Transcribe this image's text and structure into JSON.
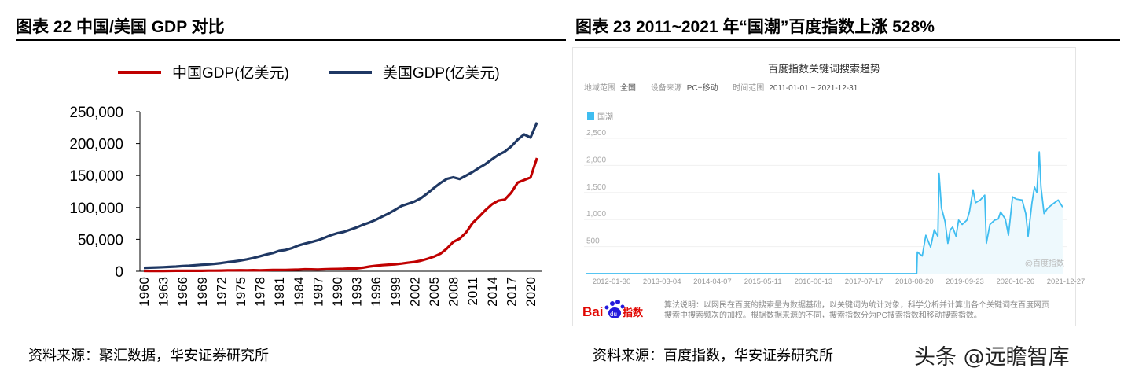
{
  "left": {
    "title": "图表 22  中国/美国 GDP 对比",
    "source": "资料来源：聚汇数据，华安证券研究所"
  },
  "right": {
    "title": "图表 23 2011~2021 年“国潮”百度指数上涨 528%",
    "source": "资料来源：百度指数，华安证券研究所",
    "panel": {
      "heading": "百度指数关键词搜索趋势",
      "region_label": "地域范围",
      "region_value": "全国",
      "device_label": "设备来源",
      "device_value": "PC+移动",
      "time_label": "时间范围",
      "time_value": "2011-01-01 ~ 2021-12-31",
      "watermark": "@百度指数",
      "logo_text": "Bai du 指数",
      "note": "算法说明：以网民在百度的搜索量为数据基础，以关键词为统计对象，科学分析并计算出各个关键词在百度网页搜索中搜索频次的加权。根据数据来源的不同，搜索指数分为PC搜索指数和移动搜索指数。"
    }
  },
  "watermark": "头条 @远瞻智库",
  "colors": {
    "china": "#c00000",
    "usa": "#1f3864",
    "baidu": "#3fbdf0",
    "baidu_fill": "#eef9fd"
  },
  "chart_data": [
    {
      "type": "line",
      "xlabel": "",
      "ylabel": "",
      "ylim": [
        0,
        250000
      ],
      "yticks": [
        "0",
        "50,000",
        "100,000",
        "150,000",
        "200,000",
        "250,000"
      ],
      "xticks": [
        "1960",
        "1963",
        "1966",
        "1969",
        "1972",
        "1975",
        "1978",
        "1981",
        "1984",
        "1987",
        "1990",
        "1993",
        "1996",
        "1999",
        "2002",
        "2005",
        "2008",
        "2011",
        "2014",
        "2017",
        "2020"
      ],
      "legend": "top",
      "x": [
        1960,
        1961,
        1962,
        1963,
        1964,
        1965,
        1966,
        1967,
        1968,
        1969,
        1970,
        1971,
        1972,
        1973,
        1974,
        1975,
        1976,
        1977,
        1978,
        1979,
        1980,
        1981,
        1982,
        1983,
        1984,
        1985,
        1986,
        1987,
        1988,
        1989,
        1990,
        1991,
        1992,
        1993,
        1994,
        1995,
        1996,
        1997,
        1998,
        1999,
        2000,
        2001,
        2002,
        2003,
        2004,
        2005,
        2006,
        2007,
        2008,
        2009,
        2010,
        2011,
        2012,
        2013,
        2014,
        2015,
        2016,
        2017,
        2018,
        2019,
        2020,
        2021
      ],
      "series": [
        {
          "name": "中国GDP(亿美元)",
          "values": [
            597,
            500,
            470,
            507,
            597,
            704,
            767,
            729,
            708,
            797,
            926,
            998,
            1137,
            1385,
            1442,
            1634,
            1539,
            1749,
            1495,
            1783,
            1911,
            1959,
            2051,
            2307,
            2599,
            3095,
            3008,
            2729,
            3124,
            3478,
            3609,
            3834,
            4269,
            4447,
            5643,
            7345,
            8637,
            9616,
            10290,
            10940,
            12110,
            13390,
            14710,
            16600,
            19550,
            22860,
            27520,
            35500,
            45940,
            51020,
            60870,
            75520,
            85320,
            95700,
            104760,
            110620,
            112330,
            123100,
            138950,
            142800,
            146880,
            177340
          ]
        },
        {
          "name": "美国GDP(亿美元)",
          "values": [
            5430,
            5630,
            6050,
            6390,
            6860,
            7440,
            8150,
            8620,
            9430,
            10190,
            10730,
            11650,
            12790,
            14250,
            15450,
            16850,
            18730,
            20820,
            23520,
            26270,
            28570,
            32070,
            33430,
            36340,
            40370,
            43390,
            45800,
            48550,
            52360,
            56420,
            59630,
            61580,
            65200,
            68590,
            72870,
            76400,
            80730,
            85780,
            90630,
            96310,
            102520,
            105820,
            109360,
            114580,
            122140,
            130370,
            138150,
            144520,
            147130,
            144490,
            149920,
            155430,
            161970,
            167850,
            175270,
            182380,
            187450,
            195430,
            206120,
            214330,
            209370,
            233150
          ]
        }
      ]
    },
    {
      "type": "area",
      "title": "百度指数关键词搜索趋势",
      "legend": "top-left",
      "ylim": [
        0,
        2500
      ],
      "yticks": [
        "500",
        "1,000",
        "1,500",
        "2,000",
        "2,500"
      ],
      "xticks": [
        "2012-01-30",
        "2013-03-04",
        "2014-04-07",
        "2015-05-11",
        "2016-06-13",
        "2017-07-17",
        "2018-08-20",
        "2019-09-23",
        "2020-10-26",
        "2021-12-27"
      ],
      "grid": true,
      "series": [
        {
          "name": "国潮",
          "points": [
            [
              "2011-01-01",
              0
            ],
            [
              "2018-08-20",
              0
            ],
            [
              "2018-08-25",
              400
            ],
            [
              "2018-10-05",
              325
            ],
            [
              "2018-11-05",
              710
            ],
            [
              "2018-12-15",
              490
            ],
            [
              "2019-01-15",
              810
            ],
            [
              "2019-02-15",
              690
            ],
            [
              "2019-02-25",
              1850
            ],
            [
              "2019-03-15",
              1210
            ],
            [
              "2019-03-28",
              1110
            ],
            [
              "2019-04-15",
              960
            ],
            [
              "2019-05-08",
              560
            ],
            [
              "2019-05-28",
              810
            ],
            [
              "2019-06-18",
              860
            ],
            [
              "2019-07-16",
              690
            ],
            [
              "2019-08-07",
              990
            ],
            [
              "2019-09-07",
              910
            ],
            [
              "2019-10-16",
              990
            ],
            [
              "2019-11-07",
              1140
            ],
            [
              "2019-12-07",
              1550
            ],
            [
              "2019-12-28",
              1310
            ],
            [
              "2020-02-06",
              1360
            ],
            [
              "2020-03-14",
              1450
            ],
            [
              "2020-03-28",
              560
            ],
            [
              "2020-04-27",
              910
            ],
            [
              "2020-06-06",
              990
            ],
            [
              "2020-07-06",
              1010
            ],
            [
              "2020-07-26",
              1140
            ],
            [
              "2020-09-05",
              1010
            ],
            [
              "2020-10-01",
              710
            ],
            [
              "2020-11-05",
              1420
            ],
            [
              "2020-12-05",
              1380
            ],
            [
              "2021-01-25",
              1360
            ],
            [
              "2021-02-25",
              1110
            ],
            [
              "2021-03-14",
              690
            ],
            [
              "2021-04-16",
              1310
            ],
            [
              "2021-05-07",
              1600
            ],
            [
              "2021-05-27",
              1500
            ],
            [
              "2021-06-17",
              2250
            ],
            [
              "2021-07-01",
              1600
            ],
            [
              "2021-07-27",
              1110
            ],
            [
              "2021-08-26",
              1210
            ],
            [
              "2021-10-05",
              1280
            ],
            [
              "2021-11-24",
              1360
            ],
            [
              "2021-12-31",
              1230
            ]
          ]
        }
      ]
    }
  ]
}
